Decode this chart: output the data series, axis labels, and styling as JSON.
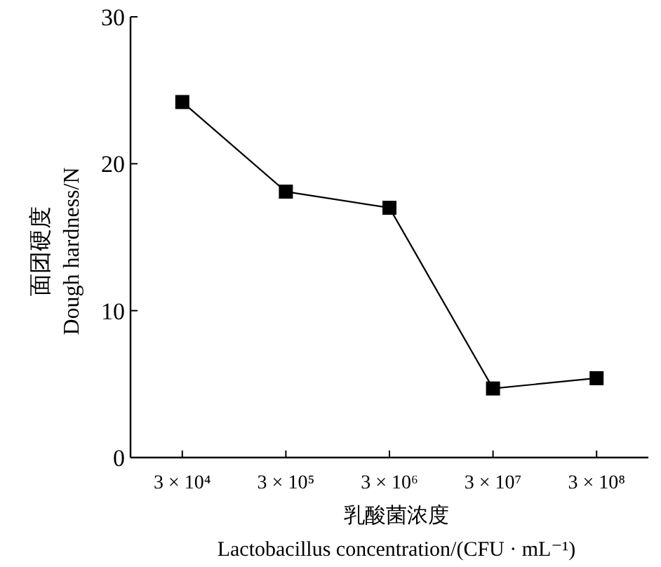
{
  "chart_data": {
    "type": "line",
    "categories": [
      "3 × 10⁴",
      "3 × 10⁵",
      "3 × 10⁶",
      "3 × 10⁷",
      "3 × 10⁸"
    ],
    "series": [
      {
        "color": "#000000",
        "values": [
          24.2,
          18.1,
          17.0,
          4.7,
          5.4
        ]
      }
    ],
    "xlabel": "乳酸菌浓度\nLactobacillus concentration/(CFU · mL⁻¹)",
    "ylabel": "面团硬度\nDough hardness/N",
    "ylim": [
      0,
      30
    ],
    "yticks": [
      0,
      10,
      20,
      30
    ],
    "marker": "square",
    "line_style": "solid",
    "grid": false
  }
}
